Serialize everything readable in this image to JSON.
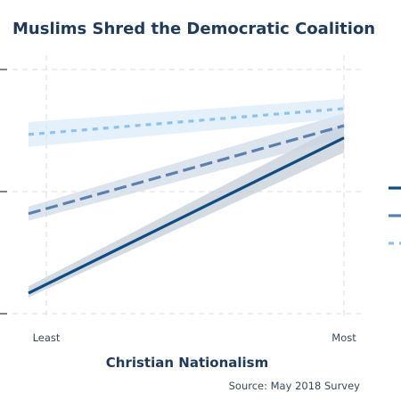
{
  "chart_data": {
    "type": "line",
    "title": "Muslims Shred the Democratic Coalition",
    "xlabel": "Christian Nationalism",
    "ylabel": "",
    "source": "Source: May 2018 Survey",
    "categories": [
      "Least",
      "Most"
    ],
    "ylim": [
      0,
      1
    ],
    "grid": true,
    "series": [
      {
        "values": [
          0.12,
          0.72
        ],
        "lower": [
          0.1,
          0.66
        ],
        "upper": [
          0.15,
          0.78
        ],
        "color": "#0f4c81",
        "band_color": "#bcc6d2",
        "dash": "solid"
      },
      {
        "values": [
          0.43,
          0.77
        ],
        "lower": [
          0.4,
          0.72
        ],
        "upper": [
          0.46,
          0.82
        ],
        "color": "#5b80ad",
        "band_color": "#c9d5e4",
        "dash": "dashed"
      },
      {
        "values": [
          0.74,
          0.84
        ],
        "lower": [
          0.69,
          0.8
        ],
        "upper": [
          0.79,
          0.88
        ],
        "color": "#8cc3ee",
        "band_color": "#d5e8f8",
        "dash": "dotted"
      }
    ]
  },
  "colors": {
    "title": "#1f3a5a",
    "grid": "#dcdcdc"
  }
}
